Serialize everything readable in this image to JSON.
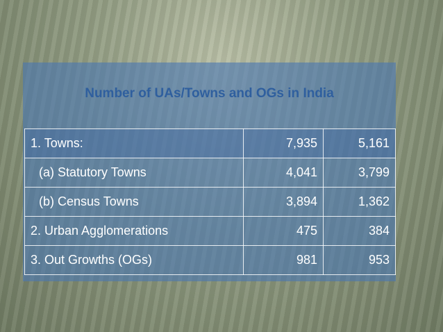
{
  "title": "Number of UAs/Towns and OGs in India",
  "table": {
    "rows": [
      [
        "1. Towns:",
        "7,935",
        "5,161"
      ],
      [
        "(a) Statutory Towns",
        "4,041",
        "3,799"
      ],
      [
        "(b) Census Towns",
        "3,894",
        "1,362"
      ],
      [
        "2. Urban Agglomerations",
        "475",
        "384"
      ],
      [
        "3. Out Growths (OGs)",
        "981",
        "953"
      ]
    ]
  }
}
